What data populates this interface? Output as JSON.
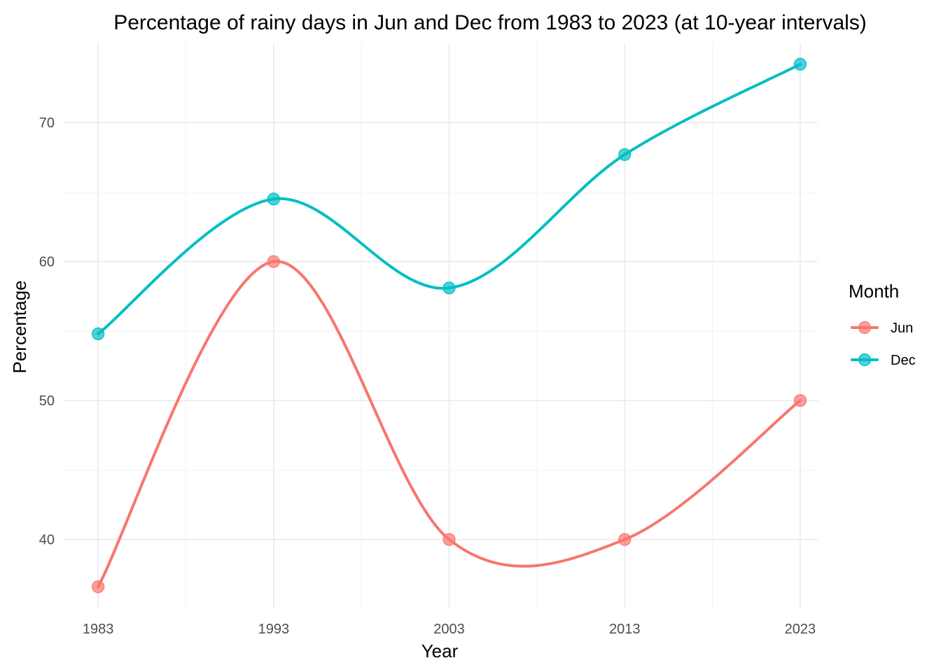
{
  "chart_data": {
    "type": "line",
    "title": "Percentage of rainy days in Jun and Dec from 1983 to 2023 (at 10-year intervals)",
    "xlabel": "Year",
    "ylabel": "Percentage",
    "x": [
      1983,
      1993,
      2003,
      2013,
      2023
    ],
    "x_ticks": [
      "1983",
      "1993",
      "2003",
      "2013",
      "2023"
    ],
    "y_ticks": [
      40,
      50,
      60,
      70
    ],
    "xlim": [
      1981,
      2024
    ],
    "ylim": [
      35,
      75.7
    ],
    "grid": true,
    "legend": {
      "title": "Month",
      "position": "right"
    },
    "series": [
      {
        "name": "Jun",
        "color": "#F8766D",
        "values": [
          36.6,
          60.0,
          40.0,
          40.0,
          50.0
        ]
      },
      {
        "name": "Dec",
        "color": "#00BFC4",
        "values": [
          54.8,
          64.5,
          58.1,
          67.7,
          74.2
        ]
      }
    ]
  }
}
